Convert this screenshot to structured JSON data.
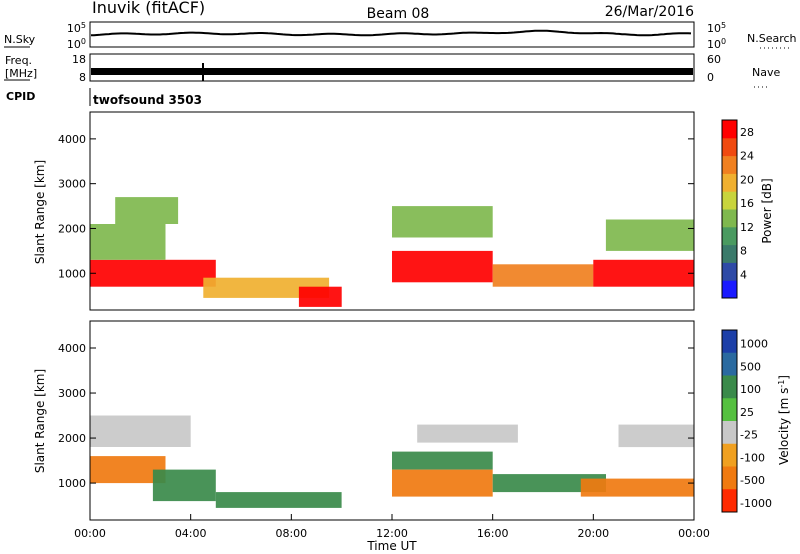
{
  "header": {
    "station": "Inuvik (fitACF)",
    "beam": "Beam 08",
    "date": "26/Mar/2016"
  },
  "panels": {
    "nsky": {
      "label": "N.Sky",
      "tick_top": "10^5",
      "tick_bottom": "10^0",
      "right_label": "N.Search",
      "right_tick_top": "10^5",
      "right_tick_bottom": "10^0"
    },
    "freq": {
      "label_line1": "Freq.",
      "label_line2": "[MHz]",
      "tick_top": "18",
      "tick_bottom": "8",
      "right_label": "Nave",
      "right_tick_top": "60",
      "right_tick_bottom": "0"
    },
    "cpid": {
      "label": "CPID",
      "program": "twofsound 3503"
    }
  },
  "chart_data": [
    {
      "type": "heatmap",
      "title": "Power",
      "xlabel": "Time UT",
      "ylabel": "Slant Range [km]",
      "xlim": [
        "00:00",
        "24:00"
      ],
      "ylim": [
        180,
        4600
      ],
      "yticks": [
        1000,
        2000,
        3000,
        4000
      ],
      "colorbar": {
        "label": "Power [dB]",
        "ticks": [
          4,
          8,
          12,
          16,
          20,
          24,
          28
        ],
        "range": [
          0,
          30
        ]
      },
      "regions": [
        {
          "t": [
            0.0,
            5.0
          ],
          "r": [
            700,
            1300
          ],
          "value": 27
        },
        {
          "t": [
            0.0,
            3.0
          ],
          "r": [
            1300,
            2100
          ],
          "value": 12
        },
        {
          "t": [
            1.0,
            3.5
          ],
          "r": [
            2100,
            2700
          ],
          "value": 14
        },
        {
          "t": [
            4.5,
            9.5
          ],
          "r": [
            450,
            900
          ],
          "value": 18
        },
        {
          "t": [
            8.3,
            10.0
          ],
          "r": [
            250,
            700
          ],
          "value": 28
        },
        {
          "t": [
            12.0,
            16.0
          ],
          "r": [
            800,
            1500
          ],
          "value": 27
        },
        {
          "t": [
            12.0,
            16.0
          ],
          "r": [
            1800,
            2500
          ],
          "value": 14
        },
        {
          "t": [
            16.0,
            20.0
          ],
          "r": [
            700,
            1200
          ],
          "value": 22
        },
        {
          "t": [
            20.0,
            24.0
          ],
          "r": [
            700,
            1300
          ],
          "value": 27
        },
        {
          "t": [
            20.5,
            24.0
          ],
          "r": [
            1500,
            2200
          ],
          "value": 12
        }
      ]
    },
    {
      "type": "heatmap",
      "title": "Velocity",
      "xlabel": "Time UT",
      "ylabel": "Slant Range [km]",
      "xlim": [
        "00:00",
        "24:00"
      ],
      "ylim": [
        180,
        4600
      ],
      "yticks": [
        1000,
        2000,
        3000,
        4000
      ],
      "xticks": [
        "00:00",
        "04:00",
        "08:00",
        "12:00",
        "16:00",
        "20:00",
        "00:00"
      ],
      "colorbar": {
        "label": "Velocity [m s^-1]",
        "ticks": [
          "1000",
          "500",
          "100",
          "25",
          "-25",
          "-100",
          "-500",
          "-1000"
        ]
      },
      "regions": [
        {
          "t": [
            0.0,
            4.0
          ],
          "r": [
            1800,
            2500
          ],
          "value": 0
        },
        {
          "t": [
            0.0,
            3.0
          ],
          "r": [
            1000,
            1600
          ],
          "value": -150
        },
        {
          "t": [
            2.5,
            5.0
          ],
          "r": [
            600,
            1300
          ],
          "value": 150
        },
        {
          "t": [
            5.0,
            10.0
          ],
          "r": [
            450,
            800
          ],
          "value": 150
        },
        {
          "t": [
            12.0,
            16.0
          ],
          "r": [
            1300,
            1700
          ],
          "value": 120
        },
        {
          "t": [
            12.0,
            16.0
          ],
          "r": [
            700,
            1300
          ],
          "value": -120
        },
        {
          "t": [
            13.0,
            17.0
          ],
          "r": [
            1900,
            2300
          ],
          "value": 0
        },
        {
          "t": [
            16.0,
            20.5
          ],
          "r": [
            800,
            1200
          ],
          "value": 120
        },
        {
          "t": [
            19.5,
            24.0
          ],
          "r": [
            700,
            1100
          ],
          "value": -200
        },
        {
          "t": [
            21.0,
            24.0
          ],
          "r": [
            1800,
            2300
          ],
          "value": 0
        }
      ]
    }
  ]
}
